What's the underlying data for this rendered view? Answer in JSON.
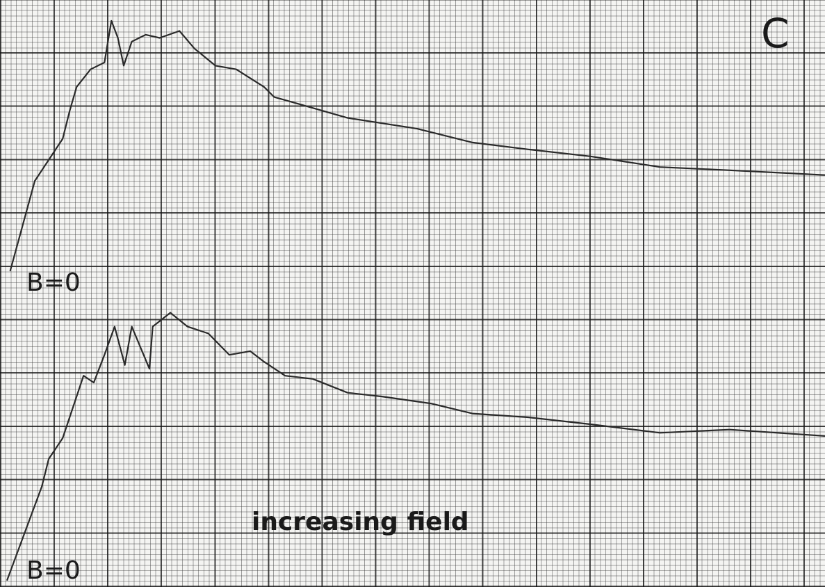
{
  "chart_data": {
    "type": "line",
    "annotations": [
      "B=0",
      "B=0",
      "increasing field",
      "C"
    ],
    "xlim": [
      0,
      15.4
    ],
    "ylim": [
      0,
      11
    ],
    "series": [
      {
        "color": "#2a2a2a",
        "x": [
          0.19,
          0.65,
          1.17,
          1.3,
          1.43,
          1.69,
          1.95,
          2.08,
          2.2,
          2.31,
          2.46,
          2.72,
          2.98,
          3.35,
          3.63,
          4.02,
          4.41,
          4.93,
          5.12,
          5.58,
          6.49,
          7.78,
          8.82,
          9.86,
          11.02,
          12.32,
          13.62,
          15.4
        ],
        "values": [
          5.92,
          7.61,
          8.4,
          8.92,
          9.37,
          9.7,
          9.83,
          10.61,
          10.29,
          9.77,
          10.22,
          10.35,
          10.29,
          10.42,
          10.09,
          9.77,
          9.7,
          9.37,
          9.18,
          9.05,
          8.79,
          8.59,
          8.33,
          8.2,
          8.07,
          7.87,
          7.81,
          7.72
        ]
      },
      {
        "color": "#2a2a2a",
        "x": [
          0.13,
          0.78,
          0.91,
          1.17,
          1.43,
          1.56,
          1.75,
          1.95,
          2.14,
          2.33,
          2.46,
          2.79,
          2.85,
          3.18,
          3.5,
          3.89,
          4.28,
          4.67,
          4.93,
          5.32,
          5.84,
          6.49,
          7.13,
          8.04,
          8.82,
          9.86,
          11.02,
          12.32,
          13.62,
          15.4
        ],
        "values": [
          0.12,
          1.88,
          2.4,
          2.79,
          3.57,
          3.96,
          3.83,
          4.35,
          4.88,
          4.16,
          4.88,
          4.09,
          4.88,
          5.14,
          4.88,
          4.75,
          4.35,
          4.42,
          4.22,
          3.96,
          3.9,
          3.64,
          3.57,
          3.44,
          3.25,
          3.18,
          3.05,
          2.89,
          2.95,
          2.83
        ]
      }
    ]
  }
}
